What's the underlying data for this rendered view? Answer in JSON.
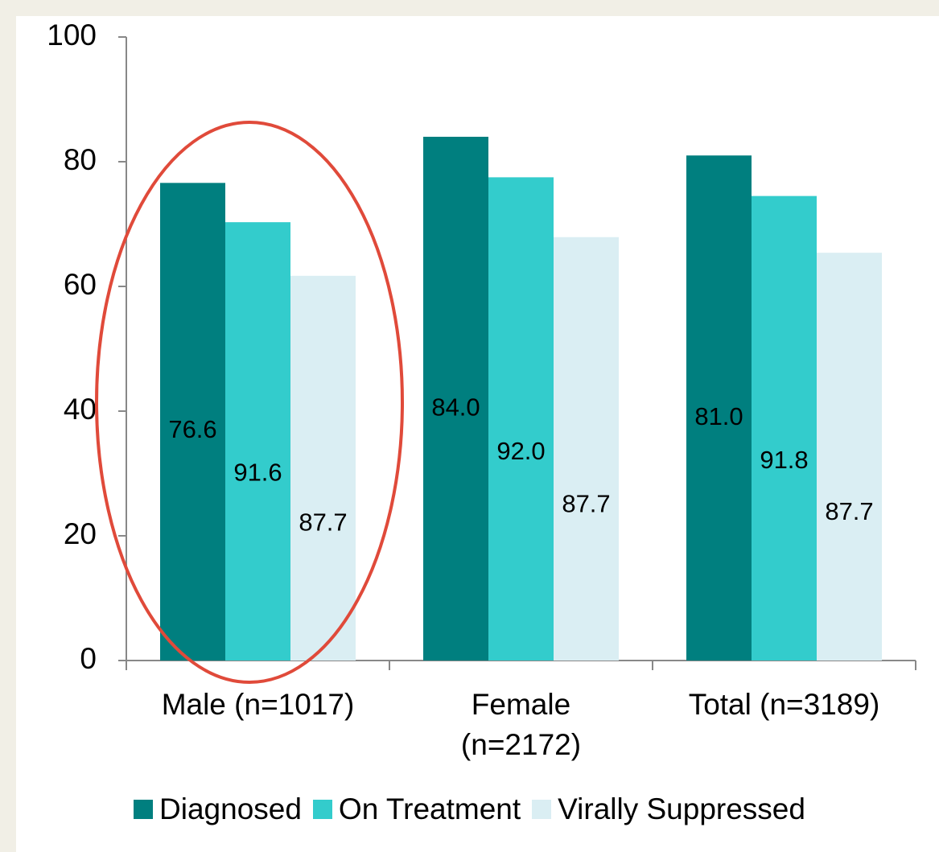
{
  "chart_data": {
    "type": "bar",
    "categories": [
      "Male (n=1017)",
      "Female\n(n=2172)",
      "Total (n=3189)"
    ],
    "series": [
      {
        "name": "Diagnosed",
        "color": "#007f7f",
        "values": [
          76.6,
          84.0,
          81.0
        ],
        "data_labels": [
          "76.6",
          "84.0",
          "81.0"
        ]
      },
      {
        "name": "On Treatment",
        "color": "#33cccc",
        "values": [
          70.3,
          77.5,
          74.5
        ],
        "data_labels": [
          "91.6",
          "92.0",
          "91.8"
        ]
      },
      {
        "name": "Virally Suppressed",
        "color": "#daeef3",
        "values": [
          61.7,
          67.9,
          65.4
        ],
        "data_labels": [
          "87.7",
          "87.7",
          "87.7"
        ]
      }
    ],
    "ylim": [
      0,
      100
    ],
    "yticks": [
      0,
      20,
      40,
      60,
      80,
      100
    ],
    "legend": "bottom"
  }
}
